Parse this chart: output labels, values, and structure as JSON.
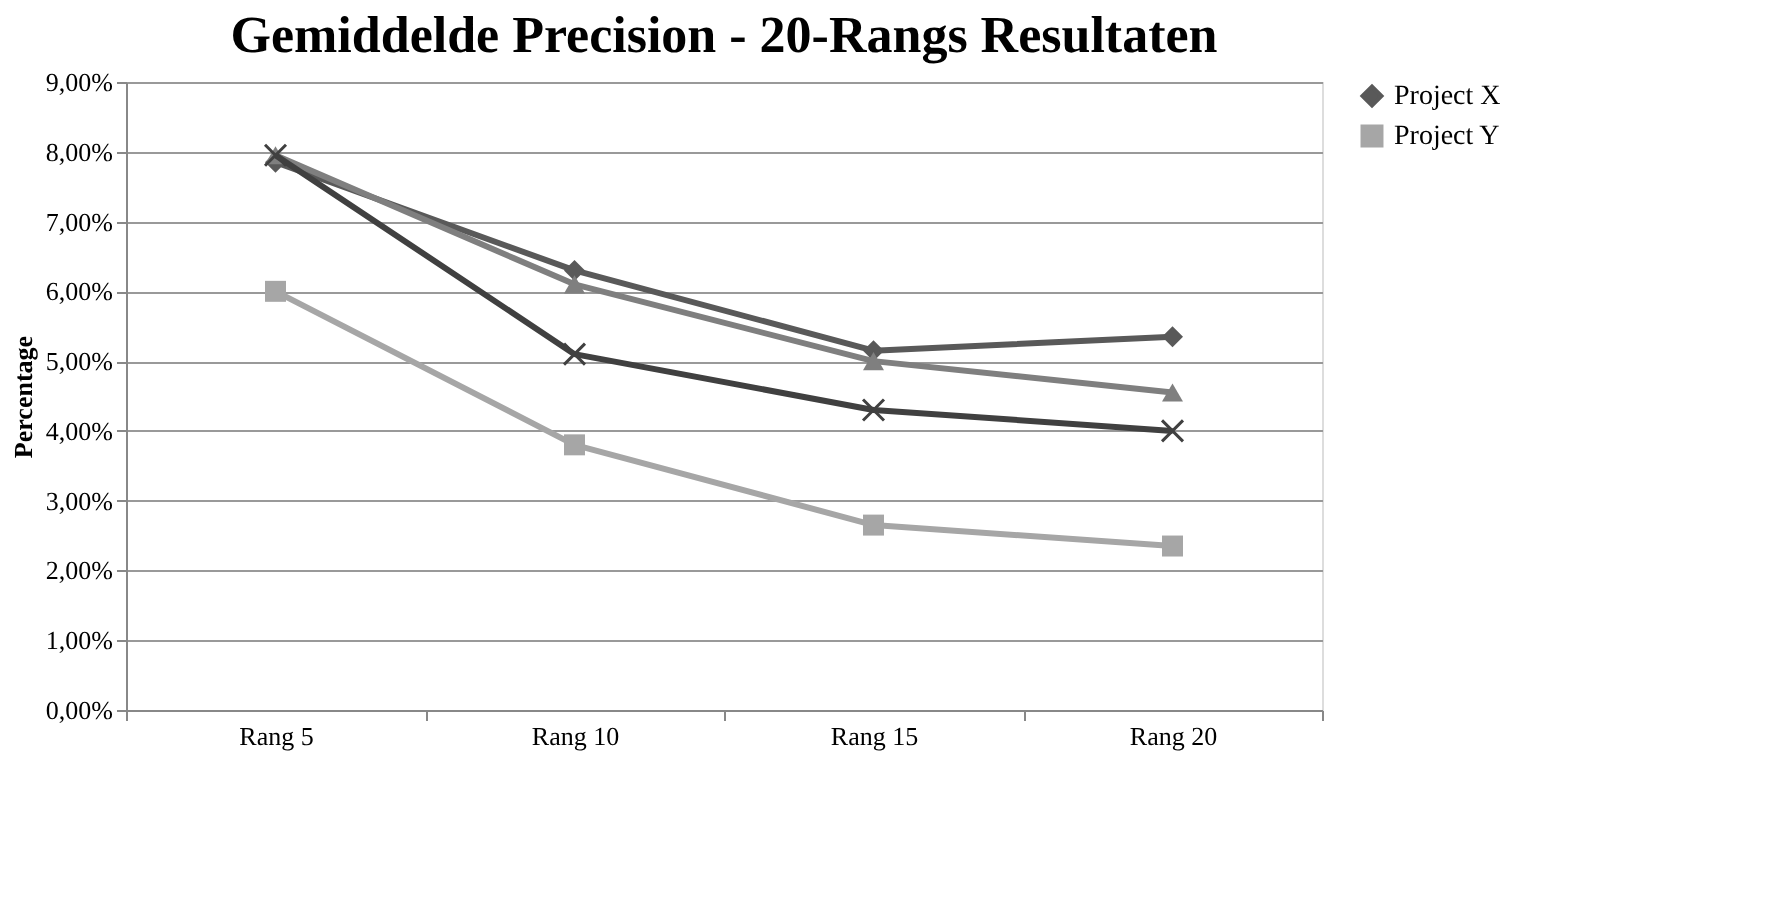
{
  "chart_data": {
    "type": "line",
    "title": "Gemiddelde Precision - 20-Rangs Resultaten",
    "ylabel": "Percentage",
    "categories": [
      "Rang 5",
      "Rang 10",
      "Rang 15",
      "Rang 20"
    ],
    "series": [
      {
        "name": "Project X",
        "color": "#595959",
        "marker": "diamond",
        "values": [
          7.85,
          6.3,
          5.15,
          5.35
        ]
      },
      {
        "name": "Project Y",
        "color": "#a6a6a6",
        "marker": "square",
        "values": [
          6.0,
          3.8,
          2.65,
          2.35
        ]
      },
      {
        "color": "#7f7f7f",
        "marker": "triangle",
        "values": [
          7.95,
          6.1,
          5.0,
          4.55
        ]
      },
      {
        "color": "#404040",
        "marker": "cross",
        "values": [
          7.95,
          5.1,
          4.3,
          4.0
        ]
      }
    ],
    "ylim": [
      0,
      9
    ],
    "yticks": [
      {
        "value": 0,
        "label": "0,00%"
      },
      {
        "value": 1,
        "label": "1,00%"
      },
      {
        "value": 2,
        "label": "2,00%"
      },
      {
        "value": 3,
        "label": "3,00%"
      },
      {
        "value": 4,
        "label": "4,00%"
      },
      {
        "value": 5,
        "label": "5,00%"
      },
      {
        "value": 6,
        "label": "6,00%"
      },
      {
        "value": 7,
        "label": "7,00%"
      },
      {
        "value": 8,
        "label": "8,00%"
      },
      {
        "value": 9,
        "label": "9,00%"
      }
    ],
    "grid": "y",
    "legend": "right",
    "line_style": "solid"
  }
}
